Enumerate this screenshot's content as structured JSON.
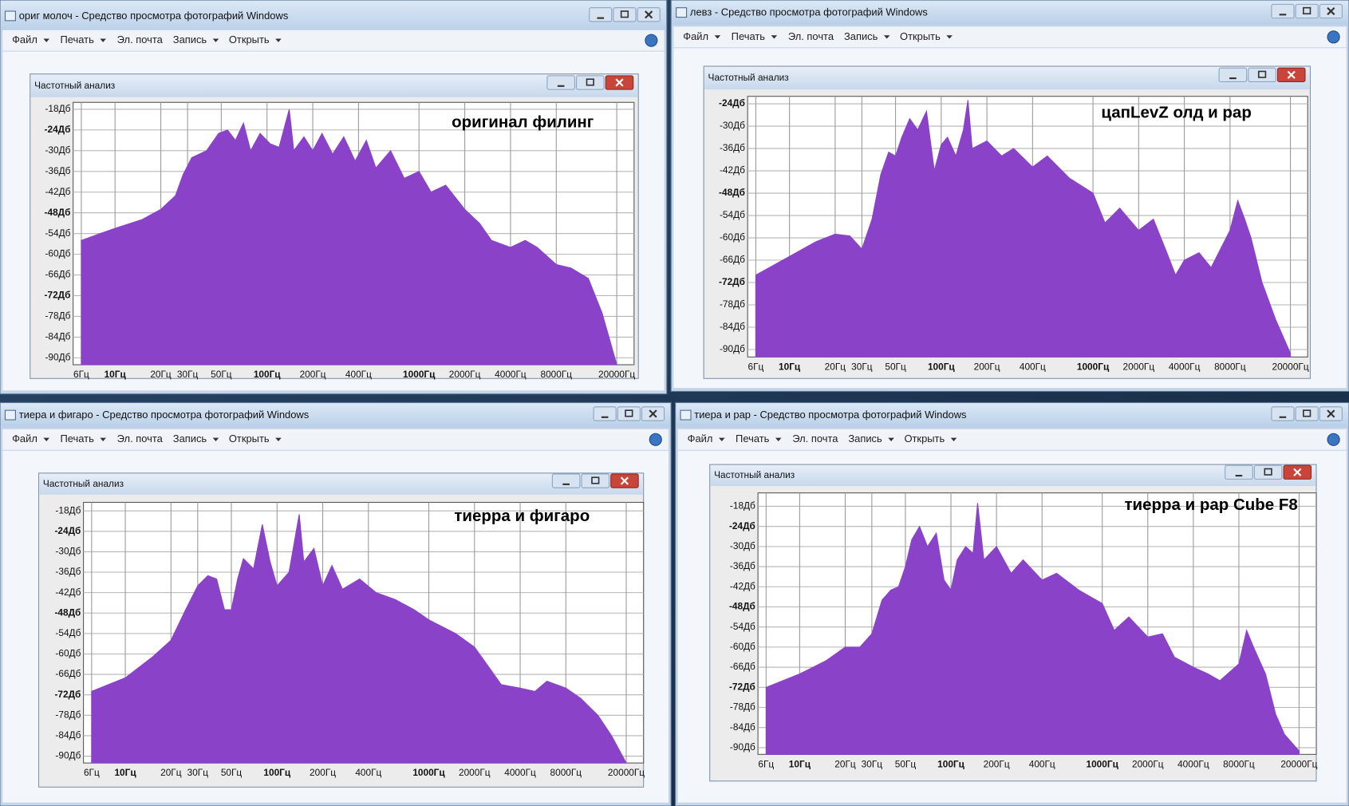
{
  "windows": [
    {
      "title": "ориг молоч - Средство просмотра фотографий Windows",
      "menu": [
        "Файл",
        "Печать",
        "Эл. почта",
        "Запись",
        "Открыть"
      ],
      "inner_title": "Частотный анализ"
    },
    {
      "title": "левз - Средство просмотра фотографий Windows",
      "menu": [
        "Файл",
        "Печать",
        "Эл. почта",
        "Запись",
        "Открыть"
      ],
      "inner_title": "Частотный анализ"
    },
    {
      "title": "тиера и фигаро - Средство просмотра фотографий Windows",
      "menu": [
        "Файл",
        "Печать",
        "Эл. почта",
        "Запись",
        "Открыть"
      ],
      "inner_title": "Частотный анализ"
    },
    {
      "title": "тиера и рар - Средство просмотра фотографий Windows",
      "menu": [
        "Файл",
        "Печать",
        "Эл. почта",
        "Запись",
        "Открыть"
      ],
      "inner_title": "Частотный анализ"
    }
  ],
  "chart_data": [
    {
      "type": "area",
      "annotation": "оригинал филинг",
      "color": "#8a42c8",
      "xscale": "log",
      "grid": true,
      "xlim": [
        5.3,
        26000
      ],
      "ylim": [
        -92,
        -16
      ],
      "x": [
        6,
        8,
        10,
        15,
        20,
        25,
        28,
        32,
        40,
        48,
        55,
        62,
        70,
        78,
        90,
        105,
        120,
        140,
        150,
        175,
        200,
        230,
        270,
        320,
        380,
        450,
        520,
        650,
        800,
        1000,
        1200,
        1500,
        2000,
        2500,
        3000,
        4000,
        5000,
        6000,
        8000,
        10000,
        13000,
        16000,
        20000
      ],
      "values": [
        -56,
        -54,
        -52.5,
        -50,
        -47,
        -43,
        -37,
        -32,
        -30,
        -25,
        -24,
        -27,
        -22,
        -30,
        -25,
        -28,
        -29,
        -18,
        -30,
        -26,
        -30,
        -25,
        -31,
        -26,
        -33,
        -27,
        -35,
        -30,
        -38,
        -36,
        -42,
        -40,
        -47,
        -51,
        -56,
        -58,
        -56,
        -58,
        -63,
        -64,
        -67,
        -77,
        -92
      ],
      "xticks": [
        {
          "value": 6,
          "label": "6Гц"
        },
        {
          "value": 10,
          "label": "10Гц"
        },
        {
          "value": 20,
          "label": "20Гц"
        },
        {
          "value": 30,
          "label": "30Гц"
        },
        {
          "value": 50,
          "label": "50Гц"
        },
        {
          "value": 100,
          "label": "100Гц"
        },
        {
          "value": 200,
          "label": "200Гц"
        },
        {
          "value": 400,
          "label": "400Гц"
        },
        {
          "value": 1000,
          "label": "1000Гц"
        },
        {
          "value": 2000,
          "label": "2000Гц"
        },
        {
          "value": 4000,
          "label": "4000Гц"
        },
        {
          "value": 8000,
          "label": "8000Гц"
        },
        {
          "value": 20000,
          "label": "20000Гц"
        }
      ],
      "yticks": [
        {
          "value": -18,
          "label": "-18Дб"
        },
        {
          "value": -24,
          "label": "-24Дб"
        },
        {
          "value": -30,
          "label": "-30Дб"
        },
        {
          "value": -36,
          "label": "-36Дб"
        },
        {
          "value": -42,
          "label": "-42Дб"
        },
        {
          "value": -48,
          "label": "-48Дб"
        },
        {
          "value": -54,
          "label": "-54Дб"
        },
        {
          "value": -60,
          "label": "-60Дб"
        },
        {
          "value": -66,
          "label": "-66Дб"
        },
        {
          "value": -72,
          "label": "-72Дб"
        },
        {
          "value": -78,
          "label": "-78Дб"
        },
        {
          "value": -84,
          "label": "-84Дб"
        },
        {
          "value": -90,
          "label": "-90Дб"
        }
      ]
    },
    {
      "type": "area",
      "annotation": "цапLevZ олд и рар",
      "color": "#8a42c8",
      "xscale": "log",
      "grid": true,
      "xlim": [
        5.3,
        26000
      ],
      "ylim": [
        -92,
        -22
      ],
      "x": [
        6,
        10,
        15,
        20,
        25,
        30,
        35,
        40,
        45,
        50,
        55,
        62,
        70,
        80,
        90,
        100,
        110,
        125,
        140,
        150,
        160,
        200,
        250,
        300,
        400,
        500,
        700,
        1000,
        1200,
        1500,
        2000,
        2500,
        3000,
        3500,
        4000,
        5000,
        6000,
        8000,
        9000,
        10000,
        11000,
        13000,
        16000,
        20000
      ],
      "values": [
        -70,
        -65,
        -61,
        -59,
        -59.5,
        -63,
        -55,
        -43,
        -37,
        -38,
        -33,
        -28,
        -31,
        -26,
        -42,
        -35,
        -33,
        -38,
        -31,
        -23,
        -36,
        -34,
        -38,
        -36,
        -41,
        -38,
        -44,
        -48,
        -56,
        -52,
        -58,
        -55,
        -63,
        -70,
        -66,
        -64,
        -68,
        -58,
        -50,
        -55,
        -60,
        -72,
        -82,
        -91
      ],
      "xticks": [
        {
          "value": 6,
          "label": "6Гц"
        },
        {
          "value": 10,
          "label": "10Гц"
        },
        {
          "value": 20,
          "label": "20Гц"
        },
        {
          "value": 30,
          "label": "30Гц"
        },
        {
          "value": 50,
          "label": "50Гц"
        },
        {
          "value": 100,
          "label": "100Гц"
        },
        {
          "value": 200,
          "label": "200Гц"
        },
        {
          "value": 400,
          "label": "400Гц"
        },
        {
          "value": 1000,
          "label": "1000Гц"
        },
        {
          "value": 2000,
          "label": "2000Гц"
        },
        {
          "value": 4000,
          "label": "4000Гц"
        },
        {
          "value": 8000,
          "label": "8000Гц"
        },
        {
          "value": 20000,
          "label": "20000Гц"
        }
      ],
      "yticks": [
        {
          "value": -24,
          "label": "-24Дб"
        },
        {
          "value": -30,
          "label": "-30Дб"
        },
        {
          "value": -36,
          "label": "-36Дб"
        },
        {
          "value": -42,
          "label": "-42Дб"
        },
        {
          "value": -48,
          "label": "-48Дб"
        },
        {
          "value": -54,
          "label": "-54Дб"
        },
        {
          "value": -60,
          "label": "-60Дб"
        },
        {
          "value": -66,
          "label": "-66Дб"
        },
        {
          "value": -72,
          "label": "-72Дб"
        },
        {
          "value": -78,
          "label": "-78Дб"
        },
        {
          "value": -84,
          "label": "-84Дб"
        },
        {
          "value": -90,
          "label": "-90Дб"
        }
      ]
    },
    {
      "type": "area",
      "annotation": "тиерра и фигаро",
      "color": "#8a42c8",
      "xscale": "log",
      "grid": true,
      "xlim": [
        5.3,
        26000
      ],
      "ylim": [
        -92,
        -15.5
      ],
      "x": [
        6,
        10,
        15,
        20,
        25,
        30,
        35,
        40,
        45,
        50,
        55,
        60,
        70,
        80,
        90,
        100,
        120,
        140,
        150,
        175,
        200,
        230,
        270,
        350,
        450,
        600,
        800,
        1000,
        1500,
        2000,
        2500,
        3000,
        4000,
        5000,
        6000,
        8000,
        10000,
        13000,
        16000,
        20000
      ],
      "values": [
        -71,
        -67,
        -61,
        -56,
        -47,
        -40,
        -37,
        -38,
        -47,
        -47,
        -38,
        -32,
        -35,
        -22,
        -33,
        -40,
        -36,
        -19,
        -33,
        -29,
        -40,
        -34,
        -41,
        -38,
        -42,
        -44,
        -47,
        -50,
        -54,
        -58,
        -64,
        -69,
        -70,
        -71,
        -68,
        -70,
        -73,
        -78,
        -84,
        -92
      ],
      "xticks": [
        {
          "value": 6,
          "label": "6Гц"
        },
        {
          "value": 10,
          "label": "10Гц"
        },
        {
          "value": 20,
          "label": "20Гц"
        },
        {
          "value": 30,
          "label": "30Гц"
        },
        {
          "value": 50,
          "label": "50Гц"
        },
        {
          "value": 100,
          "label": "100Гц"
        },
        {
          "value": 200,
          "label": "200Гц"
        },
        {
          "value": 400,
          "label": "400Гц"
        },
        {
          "value": 1000,
          "label": "1000Гц"
        },
        {
          "value": 2000,
          "label": "2000Гц"
        },
        {
          "value": 4000,
          "label": "4000Гц"
        },
        {
          "value": 8000,
          "label": "8000Гц"
        },
        {
          "value": 20000,
          "label": "20000Гц"
        }
      ],
      "yticks": [
        {
          "value": -18,
          "label": "-18Дб"
        },
        {
          "value": -24,
          "label": "-24Дб"
        },
        {
          "value": -30,
          "label": "-30Дб"
        },
        {
          "value": -36,
          "label": "-36Дб"
        },
        {
          "value": -42,
          "label": "-42Дб"
        },
        {
          "value": -48,
          "label": "-48Дб"
        },
        {
          "value": -54,
          "label": "-54Дб"
        },
        {
          "value": -60,
          "label": "-60Дб"
        },
        {
          "value": -66,
          "label": "-66Дб"
        },
        {
          "value": -72,
          "label": "-72Дб"
        },
        {
          "value": -78,
          "label": "-78Дб"
        },
        {
          "value": -84,
          "label": "-84Дб"
        },
        {
          "value": -90,
          "label": "-90Дб"
        }
      ]
    },
    {
      "type": "area",
      "annotation": "тиерра и рар Cube F8",
      "color": "#8a42c8",
      "xscale": "log",
      "grid": true,
      "xlim": [
        5.3,
        26000
      ],
      "ylim": [
        -92,
        -14
      ],
      "x": [
        6,
        10,
        15,
        20,
        25,
        30,
        35,
        40,
        45,
        50,
        55,
        62,
        70,
        80,
        90,
        100,
        110,
        125,
        140,
        150,
        165,
        200,
        250,
        300,
        400,
        500,
        700,
        1000,
        1200,
        1500,
        2000,
        2500,
        3000,
        4000,
        5000,
        6000,
        8000,
        9000,
        10000,
        12000,
        14000,
        16000,
        20000
      ],
      "values": [
        -72,
        -68,
        -64,
        -60,
        -60,
        -56,
        -46,
        -43,
        -42,
        -36,
        -28,
        -24,
        -30,
        -26,
        -40,
        -43,
        -34,
        -30,
        -32,
        -17,
        -34,
        -30,
        -38,
        -34,
        -40,
        -38,
        -43,
        -47,
        -55,
        -51,
        -57,
        -56,
        -63,
        -66,
        -68,
        -70,
        -65,
        -55,
        -60,
        -68,
        -80,
        -86,
        -91
      ],
      "xticks": [
        {
          "value": 6,
          "label": "6Гц"
        },
        {
          "value": 10,
          "label": "10Гц"
        },
        {
          "value": 20,
          "label": "20Гц"
        },
        {
          "value": 30,
          "label": "30Гц"
        },
        {
          "value": 50,
          "label": "50Гц"
        },
        {
          "value": 100,
          "label": "100Гц"
        },
        {
          "value": 200,
          "label": "200Гц"
        },
        {
          "value": 400,
          "label": "400Гц"
        },
        {
          "value": 1000,
          "label": "1000Гц"
        },
        {
          "value": 2000,
          "label": "2000Гц"
        },
        {
          "value": 4000,
          "label": "4000Гц"
        },
        {
          "value": 8000,
          "label": "8000Гц"
        },
        {
          "value": 20000,
          "label": "20000Гц"
        }
      ],
      "yticks": [
        {
          "value": -18,
          "label": "-18Дб"
        },
        {
          "value": -24,
          "label": "-24Дб"
        },
        {
          "value": -30,
          "label": "-30Дб"
        },
        {
          "value": -36,
          "label": "-36Дб"
        },
        {
          "value": -42,
          "label": "-42Дб"
        },
        {
          "value": -48,
          "label": "-48Дб"
        },
        {
          "value": -54,
          "label": "-54Дб"
        },
        {
          "value": -60,
          "label": "-60Дб"
        },
        {
          "value": -66,
          "label": "-66Дб"
        },
        {
          "value": -72,
          "label": "-72Дб"
        },
        {
          "value": -78,
          "label": "-78Дб"
        },
        {
          "value": -84,
          "label": "-84Дб"
        },
        {
          "value": -90,
          "label": "-90Дб"
        }
      ]
    }
  ]
}
